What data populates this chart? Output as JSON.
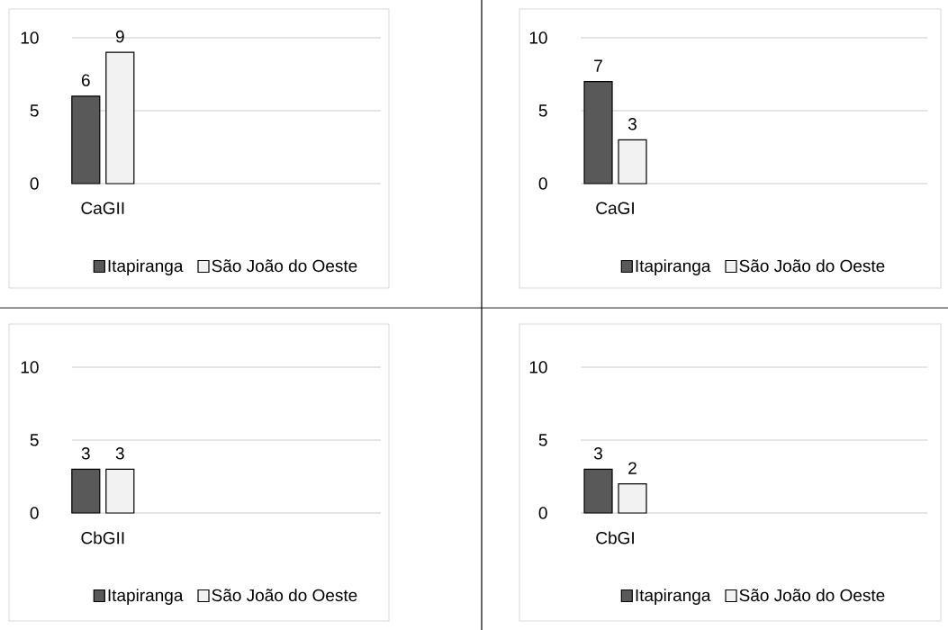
{
  "chart_data": [
    {
      "type": "bar",
      "categories": [
        "CaGII"
      ],
      "series": [
        {
          "name": "Itapiranga",
          "color": "#595959",
          "values": [
            6
          ]
        },
        {
          "name": "São João do Oeste",
          "color": "#f2f2f2",
          "values": [
            9
          ]
        }
      ],
      "ylim": [
        0,
        10
      ],
      "yticks": [
        0,
        5,
        10
      ],
      "grid": "y",
      "legend": "bottom",
      "data_labels": true
    },
    {
      "type": "bar",
      "categories": [
        "CaGI"
      ],
      "series": [
        {
          "name": "Itapiranga",
          "color": "#595959",
          "values": [
            7
          ]
        },
        {
          "name": "São João do Oeste",
          "color": "#f2f2f2",
          "values": [
            3
          ]
        }
      ],
      "ylim": [
        0,
        10
      ],
      "yticks": [
        0,
        5,
        10
      ],
      "grid": "y",
      "legend": "bottom",
      "data_labels": true
    },
    {
      "type": "bar",
      "categories": [
        "CbGII"
      ],
      "series": [
        {
          "name": "Itapiranga",
          "color": "#595959",
          "values": [
            3
          ]
        },
        {
          "name": "São João do Oeste",
          "color": "#f2f2f2",
          "values": [
            3
          ]
        }
      ],
      "ylim": [
        0,
        10
      ],
      "yticks": [
        0,
        5,
        10
      ],
      "grid": "y",
      "legend": "bottom",
      "data_labels": true
    },
    {
      "type": "bar",
      "categories": [
        "CbGI"
      ],
      "series": [
        {
          "name": "Itapiranga",
          "color": "#595959",
          "values": [
            3
          ]
        },
        {
          "name": "São João do Oeste",
          "color": "#f2f2f2",
          "values": [
            2
          ]
        }
      ],
      "ylim": [
        0,
        10
      ],
      "yticks": [
        0,
        5,
        10
      ],
      "grid": "y",
      "legend": "bottom",
      "data_labels": true
    }
  ]
}
